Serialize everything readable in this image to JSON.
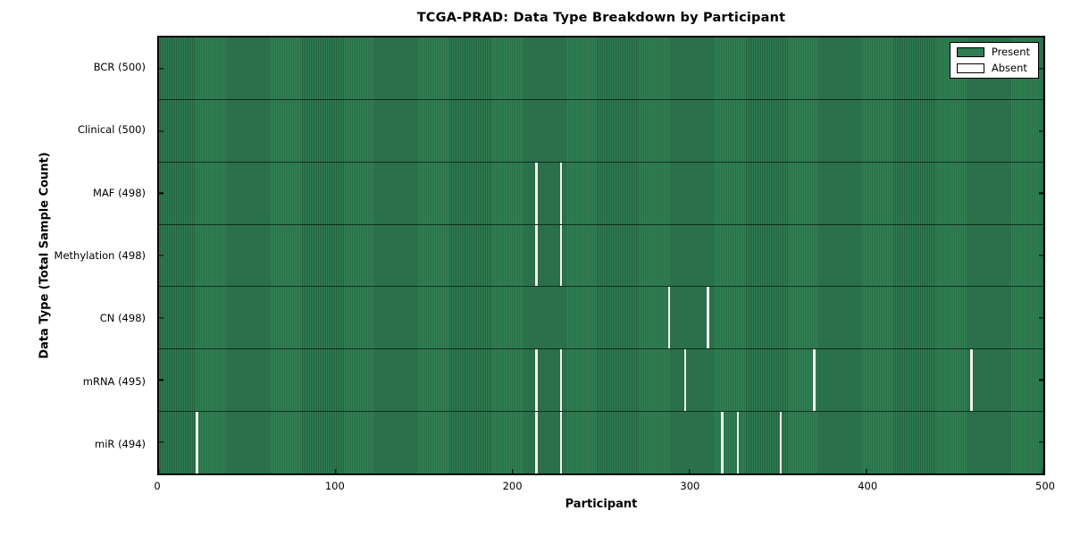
{
  "title": "TCGA-PRAD: Data Type Breakdown by Participant",
  "xlabel": "Participant",
  "ylabel": "Data Type (Total Sample Count)",
  "legend": {
    "position": "upper right",
    "entries": [
      {
        "label": "Present",
        "color": "#2f7e52"
      },
      {
        "label": "Absent",
        "color": "#ffffff"
      }
    ]
  },
  "colors": {
    "present_fill": "#2f7e52",
    "present_stripe_dark": "#22603f",
    "absent_line": "#f0f0f0",
    "axis_border": "#000000",
    "background": "#ffffff"
  },
  "chart_data": {
    "type": "heatmap",
    "title": "TCGA-PRAD: Data Type Breakdown by Participant",
    "xlabel": "Participant",
    "ylabel": "Data Type (Total Sample Count)",
    "x_range": [
      0,
      500
    ],
    "x_ticks": [
      0,
      100,
      200,
      300,
      400,
      500
    ],
    "n_participants": 500,
    "grid": false,
    "legend_position": "upper right",
    "rows": [
      {
        "label": "BCR (500)",
        "data_type": "BCR",
        "total": 500,
        "absent_participants": []
      },
      {
        "label": "Clinical (500)",
        "data_type": "Clinical",
        "total": 500,
        "absent_participants": []
      },
      {
        "label": "MAF (498)",
        "data_type": "MAF",
        "total": 498,
        "absent_participants": [
          213,
          227
        ]
      },
      {
        "label": "Methylation (498)",
        "data_type": "Methylation",
        "total": 498,
        "absent_participants": [
          213,
          227
        ]
      },
      {
        "label": "CN (498)",
        "data_type": "CN",
        "total": 498,
        "absent_participants": [
          288,
          310
        ]
      },
      {
        "label": "mRNA (495)",
        "data_type": "mRNA",
        "total": 495,
        "absent_participants": [
          213,
          227,
          297,
          370,
          459
        ]
      },
      {
        "label": "miR (494)",
        "data_type": "miR",
        "total": 494,
        "absent_participants": [
          21,
          213,
          227,
          318,
          327,
          351
        ]
      }
    ]
  }
}
